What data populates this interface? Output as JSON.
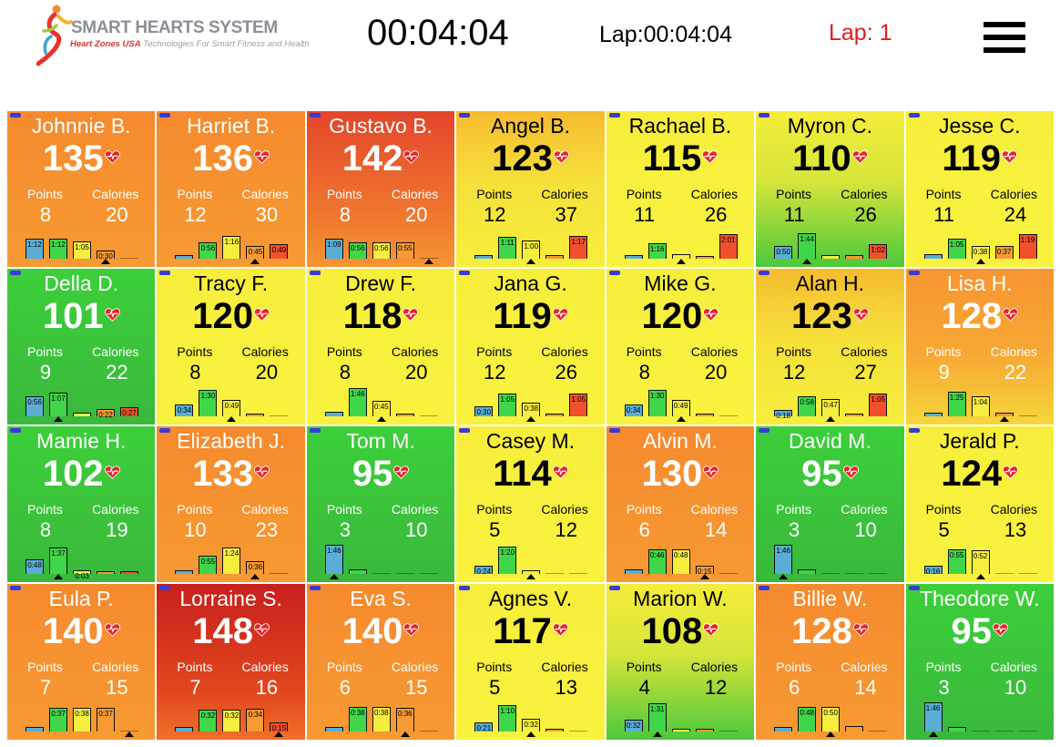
{
  "header": {
    "logo_title": "SMART HEARTS SYSTEM",
    "logo_brand": "Heart Zones USA",
    "logo_tagline": "Technologies For Smart Fitness and Health",
    "timer": "00:04:04",
    "lap_time": "Lap:00:04:04",
    "lap_count": "Lap: 1"
  },
  "labels": {
    "points": "Points",
    "calories": "Calories"
  },
  "zone_colors": [
    "#5aaed6",
    "#40d64a",
    "#f6ee3e",
    "#f79a32",
    "#f0502e"
  ],
  "athletes": [
    {
      "name": "Johnnie B.",
      "hr": "135",
      "points": "8",
      "calories": "20",
      "zone": "orange",
      "bars": [
        {
          "z": 0,
          "label": "1:12",
          "h": 0.6
        },
        {
          "z": 1,
          "label": "1:12",
          "h": 0.6
        },
        {
          "z": 2,
          "label": "1:05",
          "h": 0.52
        },
        {
          "z": 3,
          "label": "0:30",
          "h": 0.26
        }
      ],
      "marker": 3
    },
    {
      "name": "Harriet B.",
      "hr": "136",
      "points": "12",
      "calories": "30",
      "zone": "orange",
      "bars": [
        {
          "z": 0,
          "label": "",
          "h": 0.1
        },
        {
          "z": 1,
          "label": "0:56",
          "h": 0.5
        },
        {
          "z": 2,
          "label": "1:16",
          "h": 0.7
        },
        {
          "z": 3,
          "label": "0:45",
          "h": 0.4
        },
        {
          "z": 4,
          "label": "0:49",
          "h": 0.44
        }
      ],
      "marker": 3
    },
    {
      "name": "Gustavo B.",
      "hr": "142",
      "points": "8",
      "calories": "20",
      "zone": "orange-red",
      "bars": [
        {
          "z": 0,
          "label": "1:09",
          "h": 0.62
        },
        {
          "z": 1,
          "label": "0:56",
          "h": 0.5
        },
        {
          "z": 2,
          "label": "0:56",
          "h": 0.5
        },
        {
          "z": 3,
          "label": "0:55",
          "h": 0.5
        }
      ],
      "marker": 4
    },
    {
      "name": "Angel B.",
      "hr": "123",
      "points": "12",
      "calories": "37",
      "zone": "yellow-orange",
      "bars": [
        {
          "z": 0,
          "label": "",
          "h": 0.12
        },
        {
          "z": 1,
          "label": "1:11",
          "h": 0.66
        },
        {
          "z": 2,
          "label": "1:00",
          "h": 0.56
        },
        {
          "z": 3,
          "label": "",
          "h": 0.1
        },
        {
          "z": 4,
          "label": "1:17",
          "h": 0.7
        }
      ],
      "marker": 2
    },
    {
      "name": "Rachael B.",
      "hr": "115",
      "points": "11",
      "calories": "26",
      "zone": "yellow",
      "bars": [
        {
          "z": 0,
          "label": "",
          "h": 0.1
        },
        {
          "z": 1,
          "label": "1:16",
          "h": 0.46
        },
        {
          "z": 2,
          "label": "",
          "h": 0.14
        },
        {
          "z": 3,
          "label": "",
          "h": 0.04
        },
        {
          "z": 4,
          "label": "2:01",
          "h": 0.74
        }
      ],
      "marker": 2
    },
    {
      "name": "Myron C.",
      "hr": "110",
      "points": "11",
      "calories": "26",
      "zone": "yellow-green",
      "bars": [
        {
          "z": 0,
          "label": "0:50",
          "h": 0.4
        },
        {
          "z": 1,
          "label": "1:44",
          "h": 0.78
        },
        {
          "z": 2,
          "label": "",
          "h": 0.1
        },
        {
          "z": 3,
          "label": "",
          "h": 0.1
        },
        {
          "z": 4,
          "label": "1:02",
          "h": 0.44
        }
      ],
      "marker": 1
    },
    {
      "name": "Jesse C.",
      "hr": "119",
      "points": "11",
      "calories": "24",
      "zone": "yellow",
      "bars": [
        {
          "z": 0,
          "label": "",
          "h": 0.14
        },
        {
          "z": 1,
          "label": "1:05",
          "h": 0.62
        },
        {
          "z": 2,
          "label": "0:38",
          "h": 0.4
        },
        {
          "z": 3,
          "label": "0:37",
          "h": 0.38
        },
        {
          "z": 4,
          "label": "1:19",
          "h": 0.74
        }
      ],
      "marker": 2
    },
    {
      "name": "Della D.",
      "hr": "101",
      "points": "9",
      "calories": "22",
      "zone": "green",
      "bars": [
        {
          "z": 0,
          "label": "0:56",
          "h": 0.6
        },
        {
          "z": 1,
          "label": "1:07",
          "h": 0.72
        },
        {
          "z": 2,
          "label": "",
          "h": 0.12
        },
        {
          "z": 3,
          "label": "0:22",
          "h": 0.22
        },
        {
          "z": 4,
          "label": "0:27",
          "h": 0.28
        }
      ],
      "marker": 1
    },
    {
      "name": "Tracy F.",
      "hr": "120",
      "points": "8",
      "calories": "20",
      "zone": "yellow",
      "bars": [
        {
          "z": 0,
          "label": "0:34",
          "h": 0.36
        },
        {
          "z": 1,
          "label": "1:30",
          "h": 0.8
        },
        {
          "z": 2,
          "label": "0:49",
          "h": 0.5
        },
        {
          "z": 3,
          "label": "",
          "h": 0.06
        }
      ],
      "marker": 2
    },
    {
      "name": "Drew F.",
      "hr": "118",
      "points": "8",
      "calories": "20",
      "zone": "yellow",
      "bars": [
        {
          "z": 0,
          "label": "",
          "h": 0.14
        },
        {
          "z": 1,
          "label": "1:46",
          "h": 0.86
        },
        {
          "z": 2,
          "label": "0:45",
          "h": 0.46
        },
        {
          "z": 3,
          "label": "",
          "h": 0.06
        }
      ],
      "marker": 2
    },
    {
      "name": "Jana G.",
      "hr": "119",
      "points": "12",
      "calories": "26",
      "zone": "yellow",
      "bars": [
        {
          "z": 0,
          "label": "0:30",
          "h": 0.3
        },
        {
          "z": 1,
          "label": "1:05",
          "h": 0.7
        },
        {
          "z": 2,
          "label": "0:38",
          "h": 0.42
        },
        {
          "z": 3,
          "label": "",
          "h": 0.06
        },
        {
          "z": 4,
          "label": "1:05",
          "h": 0.7
        }
      ],
      "marker": 2
    },
    {
      "name": "Mike G.",
      "hr": "120",
      "points": "8",
      "calories": "20",
      "zone": "yellow",
      "bars": [
        {
          "z": 0,
          "label": "0:34",
          "h": 0.36
        },
        {
          "z": 1,
          "label": "1:30",
          "h": 0.8
        },
        {
          "z": 2,
          "label": "0:49",
          "h": 0.5
        },
        {
          "z": 3,
          "label": "",
          "h": 0.06
        }
      ],
      "marker": 2
    },
    {
      "name": "Alan H.",
      "hr": "123",
      "points": "12",
      "calories": "27",
      "zone": "yellow-orange",
      "bars": [
        {
          "z": 0,
          "label": "0:18",
          "h": 0.2
        },
        {
          "z": 1,
          "label": "0:58",
          "h": 0.62
        },
        {
          "z": 2,
          "label": "0:47",
          "h": 0.52
        },
        {
          "z": 3,
          "label": "",
          "h": 0.04
        },
        {
          "z": 4,
          "label": "1:05",
          "h": 0.7
        }
      ],
      "marker": 2
    },
    {
      "name": "Lisa H.",
      "hr": "128",
      "points": "9",
      "calories": "22",
      "zone": "orange-yellow",
      "bars": [
        {
          "z": 0,
          "label": "",
          "h": 0.1
        },
        {
          "z": 1,
          "label": "1:25",
          "h": 0.76
        },
        {
          "z": 2,
          "label": "1:04",
          "h": 0.6
        },
        {
          "z": 3,
          "label": "",
          "h": 0.12
        }
      ],
      "marker": 3
    },
    {
      "name": "Mamie H.",
      "hr": "102",
      "points": "8",
      "calories": "19",
      "zone": "green",
      "bars": [
        {
          "z": 0,
          "label": "0:48",
          "h": 0.44
        },
        {
          "z": 1,
          "label": "1:37",
          "h": 0.8
        },
        {
          "z": 2,
          "label": "0:03",
          "h": 0.1
        },
        {
          "z": 3,
          "label": "",
          "h": 0.06
        },
        {
          "z": 4,
          "label": "",
          "h": 0.06
        }
      ],
      "marker": 1
    },
    {
      "name": "Elizabeth J.",
      "hr": "133",
      "points": "10",
      "calories": "23",
      "zone": "orange",
      "bars": [
        {
          "z": 0,
          "label": "",
          "h": 0.12
        },
        {
          "z": 1,
          "label": "0:55",
          "h": 0.56
        },
        {
          "z": 2,
          "label": "1:24",
          "h": 0.8
        },
        {
          "z": 3,
          "label": "0:36",
          "h": 0.38
        }
      ],
      "marker": 3
    },
    {
      "name": "Tom M.",
      "hr": "95",
      "points": "3",
      "calories": "10",
      "zone": "green",
      "bars": [
        {
          "z": 0,
          "label": "1:46",
          "h": 0.9
        },
        {
          "z": 1,
          "label": "",
          "h": 0.14
        }
      ],
      "marker": 0
    },
    {
      "name": "Casey M.",
      "hr": "114",
      "points": "5",
      "calories": "12",
      "zone": "yellow",
      "bars": [
        {
          "z": 0,
          "label": "0:24",
          "h": 0.26
        },
        {
          "z": 1,
          "label": "1:20",
          "h": 0.84
        },
        {
          "z": 2,
          "label": "",
          "h": 0.12
        }
      ],
      "marker": 2
    },
    {
      "name": "Alvin M.",
      "hr": "130",
      "points": "6",
      "calories": "14",
      "zone": "orange",
      "bars": [
        {
          "z": 0,
          "label": "",
          "h": 0.14
        },
        {
          "z": 1,
          "label": "0:46",
          "h": 0.74
        },
        {
          "z": 2,
          "label": "0:48",
          "h": 0.76
        },
        {
          "z": 3,
          "label": "0:15",
          "h": 0.26
        }
      ],
      "marker": 3
    },
    {
      "name": "David M.",
      "hr": "95",
      "points": "3",
      "calories": "10",
      "zone": "green",
      "bars": [
        {
          "z": 0,
          "label": "1:46",
          "h": 0.9
        },
        {
          "z": 1,
          "label": "",
          "h": 0.14
        }
      ],
      "marker": 0
    },
    {
      "name": "Jerald P.",
      "hr": "124",
      "points": "5",
      "calories": "13",
      "zone": "yellow",
      "bars": [
        {
          "z": 0,
          "label": "0:16",
          "h": 0.24
        },
        {
          "z": 1,
          "label": "0:55",
          "h": 0.76
        },
        {
          "z": 2,
          "label": "0:52",
          "h": 0.72
        }
      ],
      "marker": 2
    },
    {
      "name": "Eula P.",
      "hr": "140",
      "points": "7",
      "calories": "15",
      "zone": "orange",
      "bars": [
        {
          "z": 0,
          "label": "",
          "h": 0.14
        },
        {
          "z": 1,
          "label": "0:37",
          "h": 0.72
        },
        {
          "z": 2,
          "label": "0:38",
          "h": 0.72
        },
        {
          "z": 3,
          "label": "0:37",
          "h": 0.72
        }
      ],
      "marker": 4
    },
    {
      "name": "Lorraine S.",
      "hr": "148",
      "points": "7",
      "calories": "16",
      "zone": "red",
      "bars": [
        {
          "z": 0,
          "label": "",
          "h": 0.14
        },
        {
          "z": 1,
          "label": "0:32",
          "h": 0.66
        },
        {
          "z": 2,
          "label": "0:32",
          "h": 0.66
        },
        {
          "z": 3,
          "label": "0:34",
          "h": 0.7
        },
        {
          "z": 4,
          "label": "0:15",
          "h": 0.28
        }
      ],
      "marker": 4
    },
    {
      "name": "Eva S.",
      "hr": "140",
      "points": "6",
      "calories": "15",
      "zone": "orange",
      "bars": [
        {
          "z": 0,
          "label": "",
          "h": 0.14
        },
        {
          "z": 1,
          "label": "0:38",
          "h": 0.76
        },
        {
          "z": 2,
          "label": "0:38",
          "h": 0.76
        },
        {
          "z": 3,
          "label": "0:36",
          "h": 0.72
        }
      ],
      "marker": 3
    },
    {
      "name": "Agnes V.",
      "hr": "117",
      "points": "5",
      "calories": "13",
      "zone": "yellow",
      "bars": [
        {
          "z": 0,
          "label": "0:21",
          "h": 0.28
        },
        {
          "z": 1,
          "label": "1:10",
          "h": 0.8
        },
        {
          "z": 2,
          "label": "0:32",
          "h": 0.4
        },
        {
          "z": 3,
          "label": "",
          "h": 0.04
        }
      ],
      "marker": 2
    },
    {
      "name": "Marion W.",
      "hr": "108",
      "points": "4",
      "calories": "12",
      "zone": "yellow-green",
      "bars": [
        {
          "z": 0,
          "label": "0:32",
          "h": 0.36
        },
        {
          "z": 1,
          "label": "1:31",
          "h": 0.86
        },
        {
          "z": 2,
          "label": "",
          "h": 0.06
        },
        {
          "z": 3,
          "label": "",
          "h": 0.04
        }
      ],
      "marker": 1
    },
    {
      "name": "Billie W.",
      "hr": "128",
      "points": "6",
      "calories": "14",
      "zone": "orange",
      "bars": [
        {
          "z": 0,
          "label": "",
          "h": 0.14
        },
        {
          "z": 1,
          "label": "0:48",
          "h": 0.74
        },
        {
          "z": 2,
          "label": "0:50",
          "h": 0.76
        },
        {
          "z": 3,
          "label": "",
          "h": 0.16
        }
      ],
      "marker": 2
    },
    {
      "name": "Theodore W.",
      "hr": "95",
      "points": "3",
      "calories": "10",
      "zone": "green",
      "bars": [
        {
          "z": 0,
          "label": "1:46",
          "h": 0.9
        },
        {
          "z": 1,
          "label": "",
          "h": 0.14
        }
      ],
      "marker": 0
    }
  ]
}
